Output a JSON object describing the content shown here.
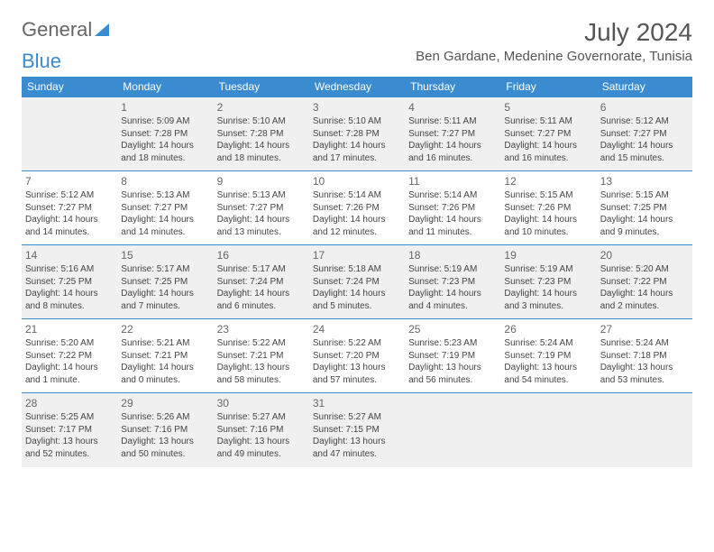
{
  "logo": {
    "text1": "General",
    "text2": "Blue"
  },
  "title": "July 2024",
  "location": "Ben Gardane, Medenine Governorate, Tunisia",
  "colors": {
    "header_bg": "#3a8bd0",
    "header_text": "#ffffff",
    "alt_row_bg": "#f0f0f0",
    "border": "#3a8bd0",
    "text": "#444444",
    "title_text": "#555555"
  },
  "dayNames": [
    "Sunday",
    "Monday",
    "Tuesday",
    "Wednesday",
    "Thursday",
    "Friday",
    "Saturday"
  ],
  "weeks": [
    [
      null,
      {
        "n": "1",
        "r": "5:09 AM",
        "s": "7:28 PM",
        "d1": "Daylight: 14 hours",
        "d2": "and 18 minutes."
      },
      {
        "n": "2",
        "r": "5:10 AM",
        "s": "7:28 PM",
        "d1": "Daylight: 14 hours",
        "d2": "and 18 minutes."
      },
      {
        "n": "3",
        "r": "5:10 AM",
        "s": "7:28 PM",
        "d1": "Daylight: 14 hours",
        "d2": "and 17 minutes."
      },
      {
        "n": "4",
        "r": "5:11 AM",
        "s": "7:27 PM",
        "d1": "Daylight: 14 hours",
        "d2": "and 16 minutes."
      },
      {
        "n": "5",
        "r": "5:11 AM",
        "s": "7:27 PM",
        "d1": "Daylight: 14 hours",
        "d2": "and 16 minutes."
      },
      {
        "n": "6",
        "r": "5:12 AM",
        "s": "7:27 PM",
        "d1": "Daylight: 14 hours",
        "d2": "and 15 minutes."
      }
    ],
    [
      {
        "n": "7",
        "r": "5:12 AM",
        "s": "7:27 PM",
        "d1": "Daylight: 14 hours",
        "d2": "and 14 minutes."
      },
      {
        "n": "8",
        "r": "5:13 AM",
        "s": "7:27 PM",
        "d1": "Daylight: 14 hours",
        "d2": "and 14 minutes."
      },
      {
        "n": "9",
        "r": "5:13 AM",
        "s": "7:27 PM",
        "d1": "Daylight: 14 hours",
        "d2": "and 13 minutes."
      },
      {
        "n": "10",
        "r": "5:14 AM",
        "s": "7:26 PM",
        "d1": "Daylight: 14 hours",
        "d2": "and 12 minutes."
      },
      {
        "n": "11",
        "r": "5:14 AM",
        "s": "7:26 PM",
        "d1": "Daylight: 14 hours",
        "d2": "and 11 minutes."
      },
      {
        "n": "12",
        "r": "5:15 AM",
        "s": "7:26 PM",
        "d1": "Daylight: 14 hours",
        "d2": "and 10 minutes."
      },
      {
        "n": "13",
        "r": "5:15 AM",
        "s": "7:25 PM",
        "d1": "Daylight: 14 hours",
        "d2": "and 9 minutes."
      }
    ],
    [
      {
        "n": "14",
        "r": "5:16 AM",
        "s": "7:25 PM",
        "d1": "Daylight: 14 hours",
        "d2": "and 8 minutes."
      },
      {
        "n": "15",
        "r": "5:17 AM",
        "s": "7:25 PM",
        "d1": "Daylight: 14 hours",
        "d2": "and 7 minutes."
      },
      {
        "n": "16",
        "r": "5:17 AM",
        "s": "7:24 PM",
        "d1": "Daylight: 14 hours",
        "d2": "and 6 minutes."
      },
      {
        "n": "17",
        "r": "5:18 AM",
        "s": "7:24 PM",
        "d1": "Daylight: 14 hours",
        "d2": "and 5 minutes."
      },
      {
        "n": "18",
        "r": "5:19 AM",
        "s": "7:23 PM",
        "d1": "Daylight: 14 hours",
        "d2": "and 4 minutes."
      },
      {
        "n": "19",
        "r": "5:19 AM",
        "s": "7:23 PM",
        "d1": "Daylight: 14 hours",
        "d2": "and 3 minutes."
      },
      {
        "n": "20",
        "r": "5:20 AM",
        "s": "7:22 PM",
        "d1": "Daylight: 14 hours",
        "d2": "and 2 minutes."
      }
    ],
    [
      {
        "n": "21",
        "r": "5:20 AM",
        "s": "7:22 PM",
        "d1": "Daylight: 14 hours",
        "d2": "and 1 minute."
      },
      {
        "n": "22",
        "r": "5:21 AM",
        "s": "7:21 PM",
        "d1": "Daylight: 14 hours",
        "d2": "and 0 minutes."
      },
      {
        "n": "23",
        "r": "5:22 AM",
        "s": "7:21 PM",
        "d1": "Daylight: 13 hours",
        "d2": "and 58 minutes."
      },
      {
        "n": "24",
        "r": "5:22 AM",
        "s": "7:20 PM",
        "d1": "Daylight: 13 hours",
        "d2": "and 57 minutes."
      },
      {
        "n": "25",
        "r": "5:23 AM",
        "s": "7:19 PM",
        "d1": "Daylight: 13 hours",
        "d2": "and 56 minutes."
      },
      {
        "n": "26",
        "r": "5:24 AM",
        "s": "7:19 PM",
        "d1": "Daylight: 13 hours",
        "d2": "and 54 minutes."
      },
      {
        "n": "27",
        "r": "5:24 AM",
        "s": "7:18 PM",
        "d1": "Daylight: 13 hours",
        "d2": "and 53 minutes."
      }
    ],
    [
      {
        "n": "28",
        "r": "5:25 AM",
        "s": "7:17 PM",
        "d1": "Daylight: 13 hours",
        "d2": "and 52 minutes."
      },
      {
        "n": "29",
        "r": "5:26 AM",
        "s": "7:16 PM",
        "d1": "Daylight: 13 hours",
        "d2": "and 50 minutes."
      },
      {
        "n": "30",
        "r": "5:27 AM",
        "s": "7:16 PM",
        "d1": "Daylight: 13 hours",
        "d2": "and 49 minutes."
      },
      {
        "n": "31",
        "r": "5:27 AM",
        "s": "7:15 PM",
        "d1": "Daylight: 13 hours",
        "d2": "and 47 minutes."
      },
      null,
      null,
      null
    ]
  ]
}
